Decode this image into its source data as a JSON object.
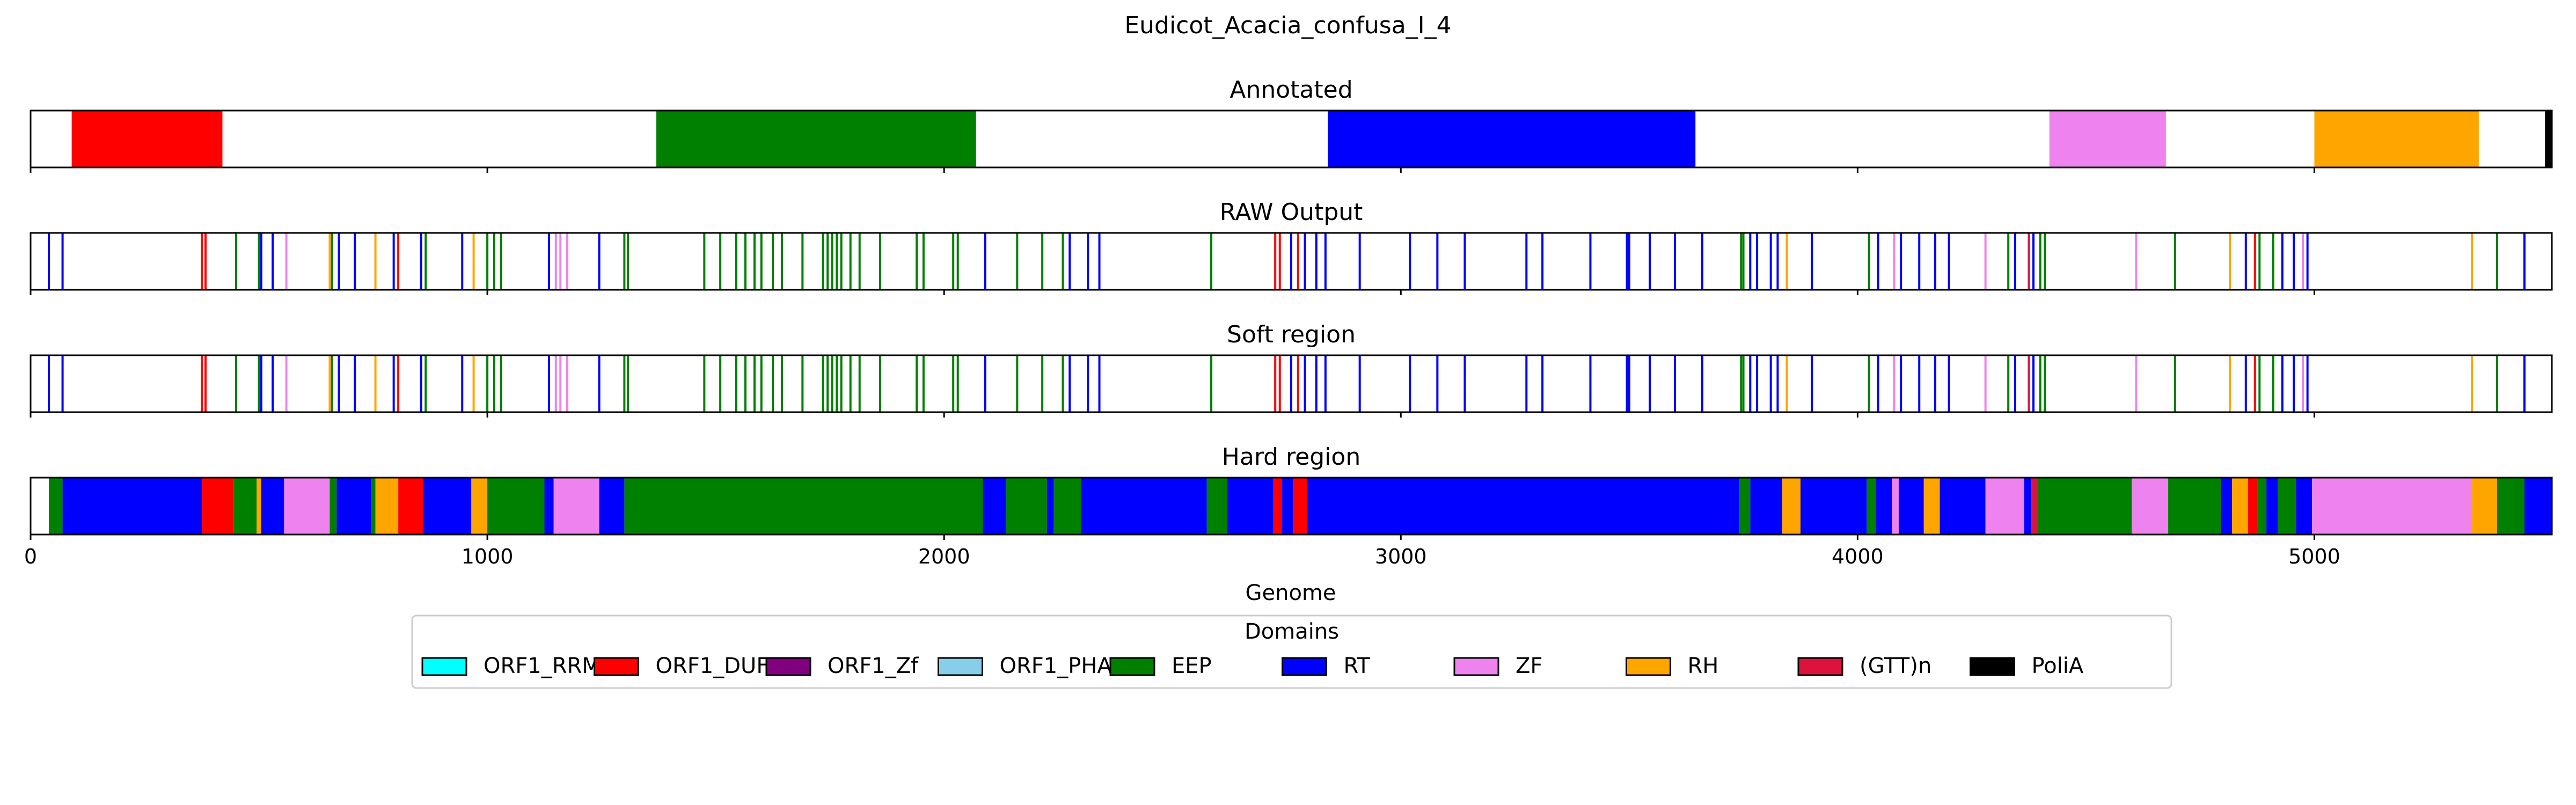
{
  "chart_data": {
    "type": "track",
    "title": "Eudicot_Acacia_confusa_I_4",
    "xlabel": "Genome",
    "xlim": [
      0,
      5520
    ],
    "x_ticks": [
      0,
      1000,
      2000,
      3000,
      4000,
      5000
    ],
    "legend": {
      "title": "Domains",
      "placement": "bottom-center",
      "items": [
        {
          "label": "ORF1_RRM",
          "color": "#00ffff"
        },
        {
          "label": "ORF1_DUF",
          "color": "#ff0000"
        },
        {
          "label": "ORF1_Zf",
          "color": "#800080"
        },
        {
          "label": "ORF1_PHA",
          "color": "#87ceeb"
        },
        {
          "label": "EEP",
          "color": "#008000"
        },
        {
          "label": "RT",
          "color": "#0000ff"
        },
        {
          "label": "ZF",
          "color": "#ee82ee"
        },
        {
          "label": "RH",
          "color": "#ffa500"
        },
        {
          "label": "(GTT)n",
          "color": "#dc143c"
        },
        {
          "label": "PoliA",
          "color": "#000000"
        }
      ]
    },
    "tracks": [
      {
        "title": "Annotated",
        "segments": [
          {
            "start": 90,
            "end": 420,
            "domain": "ORF1_DUF"
          },
          {
            "start": 1370,
            "end": 2070,
            "domain": "EEP"
          },
          {
            "start": 2840,
            "end": 3645,
            "domain": "RT"
          },
          {
            "start": 4420,
            "end": 4675,
            "domain": "ZF"
          },
          {
            "start": 5000,
            "end": 5360,
            "domain": "RH"
          },
          {
            "start": 5505,
            "end": 5520,
            "domain": "PoliA"
          }
        ]
      },
      {
        "title": "RAW Output",
        "lines": [
          {
            "x": 40,
            "domain": "RT"
          },
          {
            "x": 70,
            "domain": "RT"
          },
          {
            "x": 375,
            "domain": "ORF1_DUF"
          },
          {
            "x": 383,
            "domain": "ORF1_DUF"
          },
          {
            "x": 450,
            "domain": "EEP"
          },
          {
            "x": 500,
            "domain": "EEP"
          },
          {
            "x": 505,
            "domain": "RT"
          },
          {
            "x": 530,
            "domain": "RT"
          },
          {
            "x": 560,
            "domain": "ZF"
          },
          {
            "x": 655,
            "domain": "RH"
          },
          {
            "x": 660,
            "domain": "EEP"
          },
          {
            "x": 675,
            "domain": "RT"
          },
          {
            "x": 710,
            "domain": "RT"
          },
          {
            "x": 755,
            "domain": "RH"
          },
          {
            "x": 795,
            "domain": "RT"
          },
          {
            "x": 805,
            "domain": "ORF1_DUF"
          },
          {
            "x": 855,
            "domain": "RT"
          },
          {
            "x": 865,
            "domain": "EEP"
          },
          {
            "x": 945,
            "domain": "RT"
          },
          {
            "x": 970,
            "domain": "RH"
          },
          {
            "x": 1000,
            "domain": "EEP"
          },
          {
            "x": 1015,
            "domain": "EEP"
          },
          {
            "x": 1030,
            "domain": "EEP"
          },
          {
            "x": 1135,
            "domain": "RT"
          },
          {
            "x": 1150,
            "domain": "ZF"
          },
          {
            "x": 1160,
            "domain": "ZF"
          },
          {
            "x": 1175,
            "domain": "ZF"
          },
          {
            "x": 1245,
            "domain": "RT"
          },
          {
            "x": 1300,
            "domain": "EEP"
          },
          {
            "x": 1308,
            "domain": "EEP"
          },
          {
            "x": 1475,
            "domain": "EEP"
          },
          {
            "x": 1510,
            "domain": "EEP"
          },
          {
            "x": 1545,
            "domain": "EEP"
          },
          {
            "x": 1565,
            "domain": "EEP"
          },
          {
            "x": 1585,
            "domain": "EEP"
          },
          {
            "x": 1600,
            "domain": "EEP"
          },
          {
            "x": 1625,
            "domain": "EEP"
          },
          {
            "x": 1645,
            "domain": "EEP"
          },
          {
            "x": 1690,
            "domain": "EEP"
          },
          {
            "x": 1735,
            "domain": "EEP"
          },
          {
            "x": 1745,
            "domain": "EEP"
          },
          {
            "x": 1755,
            "domain": "EEP"
          },
          {
            "x": 1765,
            "domain": "EEP"
          },
          {
            "x": 1775,
            "domain": "EEP"
          },
          {
            "x": 1795,
            "domain": "EEP"
          },
          {
            "x": 1815,
            "domain": "EEP"
          },
          {
            "x": 1860,
            "domain": "EEP"
          },
          {
            "x": 1940,
            "domain": "EEP"
          },
          {
            "x": 1955,
            "domain": "EEP"
          },
          {
            "x": 2020,
            "domain": "EEP"
          },
          {
            "x": 2030,
            "domain": "EEP"
          },
          {
            "x": 2090,
            "domain": "RT"
          },
          {
            "x": 2160,
            "domain": "EEP"
          },
          {
            "x": 2215,
            "domain": "EEP"
          },
          {
            "x": 2260,
            "domain": "EEP"
          },
          {
            "x": 2275,
            "domain": "RT"
          },
          {
            "x": 2315,
            "domain": "RT"
          },
          {
            "x": 2340,
            "domain": "RT"
          },
          {
            "x": 2585,
            "domain": "EEP"
          },
          {
            "x": 2725,
            "domain": "ORF1_DUF"
          },
          {
            "x": 2735,
            "domain": "ORF1_DUF"
          },
          {
            "x": 2760,
            "domain": "RT"
          },
          {
            "x": 2775,
            "domain": "ORF1_DUF"
          },
          {
            "x": 2790,
            "domain": "RT"
          },
          {
            "x": 2815,
            "domain": "RT"
          },
          {
            "x": 2835,
            "domain": "RT"
          },
          {
            "x": 2910,
            "domain": "RT"
          },
          {
            "x": 3020,
            "domain": "RT"
          },
          {
            "x": 3080,
            "domain": "RT"
          },
          {
            "x": 3140,
            "domain": "RT"
          },
          {
            "x": 3275,
            "domain": "RT"
          },
          {
            "x": 3310,
            "domain": "RT"
          },
          {
            "x": 3415,
            "domain": "RT"
          },
          {
            "x": 3495,
            "domain": "RT"
          },
          {
            "x": 3500,
            "domain": "RT"
          },
          {
            "x": 3545,
            "domain": "RT"
          },
          {
            "x": 3600,
            "domain": "RT"
          },
          {
            "x": 3660,
            "domain": "RT"
          },
          {
            "x": 3745,
            "domain": "EEP"
          },
          {
            "x": 3750,
            "domain": "EEP"
          },
          {
            "x": 3765,
            "domain": "RT"
          },
          {
            "x": 3780,
            "domain": "RT"
          },
          {
            "x": 3810,
            "domain": "RT"
          },
          {
            "x": 3825,
            "domain": "RT"
          },
          {
            "x": 3845,
            "domain": "RH"
          },
          {
            "x": 3900,
            "domain": "RT"
          },
          {
            "x": 4025,
            "domain": "EEP"
          },
          {
            "x": 4045,
            "domain": "RT"
          },
          {
            "x": 4080,
            "domain": "ZF"
          },
          {
            "x": 4095,
            "domain": "RT"
          },
          {
            "x": 4135,
            "domain": "RT"
          },
          {
            "x": 4170,
            "domain": "RT"
          },
          {
            "x": 4200,
            "domain": "RT"
          },
          {
            "x": 4280,
            "domain": "ZF"
          },
          {
            "x": 4330,
            "domain": "EEP"
          },
          {
            "x": 4345,
            "domain": "RT"
          },
          {
            "x": 4375,
            "domain": "(GTT)n"
          },
          {
            "x": 4385,
            "domain": "RT"
          },
          {
            "x": 4400,
            "domain": "EEP"
          },
          {
            "x": 4410,
            "domain": "EEP"
          },
          {
            "x": 4610,
            "domain": "ZF"
          },
          {
            "x": 4695,
            "domain": "EEP"
          },
          {
            "x": 4815,
            "domain": "RH"
          },
          {
            "x": 4850,
            "domain": "RT"
          },
          {
            "x": 4870,
            "domain": "ORF1_DUF"
          },
          {
            "x": 4880,
            "domain": "EEP"
          },
          {
            "x": 4910,
            "domain": "EEP"
          },
          {
            "x": 4930,
            "domain": "RT"
          },
          {
            "x": 4955,
            "domain": "RT"
          },
          {
            "x": 4975,
            "domain": "ZF"
          },
          {
            "x": 4985,
            "domain": "RT"
          },
          {
            "x": 5345,
            "domain": "RH"
          },
          {
            "x": 5400,
            "domain": "EEP"
          },
          {
            "x": 5460,
            "domain": "RT"
          }
        ]
      },
      {
        "title": "Soft region",
        "lines_same_as": "RAW Output"
      },
      {
        "title": "Hard region",
        "segments": [
          {
            "start": 40,
            "end": 70,
            "domain": "EEP"
          },
          {
            "start": 70,
            "end": 375,
            "domain": "RT"
          },
          {
            "start": 375,
            "end": 445,
            "domain": "ORF1_DUF"
          },
          {
            "start": 445,
            "end": 495,
            "domain": "EEP"
          },
          {
            "start": 495,
            "end": 505,
            "domain": "RH"
          },
          {
            "start": 505,
            "end": 555,
            "domain": "RT"
          },
          {
            "start": 555,
            "end": 655,
            "domain": "ZF"
          },
          {
            "start": 655,
            "end": 670,
            "domain": "EEP"
          },
          {
            "start": 670,
            "end": 745,
            "domain": "RT"
          },
          {
            "start": 745,
            "end": 755,
            "domain": "EEP"
          },
          {
            "start": 755,
            "end": 805,
            "domain": "RH"
          },
          {
            "start": 805,
            "end": 860,
            "domain": "ORF1_DUF"
          },
          {
            "start": 860,
            "end": 965,
            "domain": "RT"
          },
          {
            "start": 965,
            "end": 1000,
            "domain": "RH"
          },
          {
            "start": 1000,
            "end": 1125,
            "domain": "EEP"
          },
          {
            "start": 1125,
            "end": 1145,
            "domain": "RT"
          },
          {
            "start": 1145,
            "end": 1245,
            "domain": "ZF"
          },
          {
            "start": 1245,
            "end": 1300,
            "domain": "RT"
          },
          {
            "start": 1300,
            "end": 2085,
            "domain": "EEP"
          },
          {
            "start": 2085,
            "end": 2135,
            "domain": "RT"
          },
          {
            "start": 2135,
            "end": 2225,
            "domain": "EEP"
          },
          {
            "start": 2225,
            "end": 2240,
            "domain": "RT"
          },
          {
            "start": 2240,
            "end": 2300,
            "domain": "EEP"
          },
          {
            "start": 2300,
            "end": 2575,
            "domain": "RT"
          },
          {
            "start": 2575,
            "end": 2620,
            "domain": "EEP"
          },
          {
            "start": 2620,
            "end": 2720,
            "domain": "RT"
          },
          {
            "start": 2720,
            "end": 2740,
            "domain": "ORF1_DUF"
          },
          {
            "start": 2740,
            "end": 2765,
            "domain": "RT"
          },
          {
            "start": 2765,
            "end": 2795,
            "domain": "ORF1_DUF"
          },
          {
            "start": 2795,
            "end": 3740,
            "domain": "RT"
          },
          {
            "start": 3740,
            "end": 3765,
            "domain": "EEP"
          },
          {
            "start": 3765,
            "end": 3835,
            "domain": "RT"
          },
          {
            "start": 3835,
            "end": 3875,
            "domain": "RH"
          },
          {
            "start": 3875,
            "end": 4020,
            "domain": "RT"
          },
          {
            "start": 4020,
            "end": 4040,
            "domain": "EEP"
          },
          {
            "start": 4040,
            "end": 4075,
            "domain": "RT"
          },
          {
            "start": 4075,
            "end": 4090,
            "domain": "ZF"
          },
          {
            "start": 4090,
            "end": 4145,
            "domain": "RT"
          },
          {
            "start": 4145,
            "end": 4180,
            "domain": "RH"
          },
          {
            "start": 4180,
            "end": 4280,
            "domain": "RT"
          },
          {
            "start": 4280,
            "end": 4365,
            "domain": "ZF"
          },
          {
            "start": 4365,
            "end": 4380,
            "domain": "RT"
          },
          {
            "start": 4380,
            "end": 4395,
            "domain": "(GTT)n"
          },
          {
            "start": 4395,
            "end": 4600,
            "domain": "EEP"
          },
          {
            "start": 4600,
            "end": 4680,
            "domain": "ZF"
          },
          {
            "start": 4680,
            "end": 4795,
            "domain": "EEP"
          },
          {
            "start": 4795,
            "end": 4820,
            "domain": "RT"
          },
          {
            "start": 4820,
            "end": 4855,
            "domain": "RH"
          },
          {
            "start": 4855,
            "end": 4875,
            "domain": "ORF1_DUF"
          },
          {
            "start": 4875,
            "end": 4895,
            "domain": "EEP"
          },
          {
            "start": 4895,
            "end": 4920,
            "domain": "RT"
          },
          {
            "start": 4920,
            "end": 4960,
            "domain": "EEP"
          },
          {
            "start": 4960,
            "end": 4995,
            "domain": "RT"
          },
          {
            "start": 4995,
            "end": 5345,
            "domain": "ZF"
          },
          {
            "start": 5345,
            "end": 5400,
            "domain": "RH"
          },
          {
            "start": 5400,
            "end": 5460,
            "domain": "EEP"
          },
          {
            "start": 5460,
            "end": 5520,
            "domain": "RT"
          }
        ],
        "dashed_gridlines": [
          2000,
          3000,
          4000
        ]
      }
    ]
  }
}
